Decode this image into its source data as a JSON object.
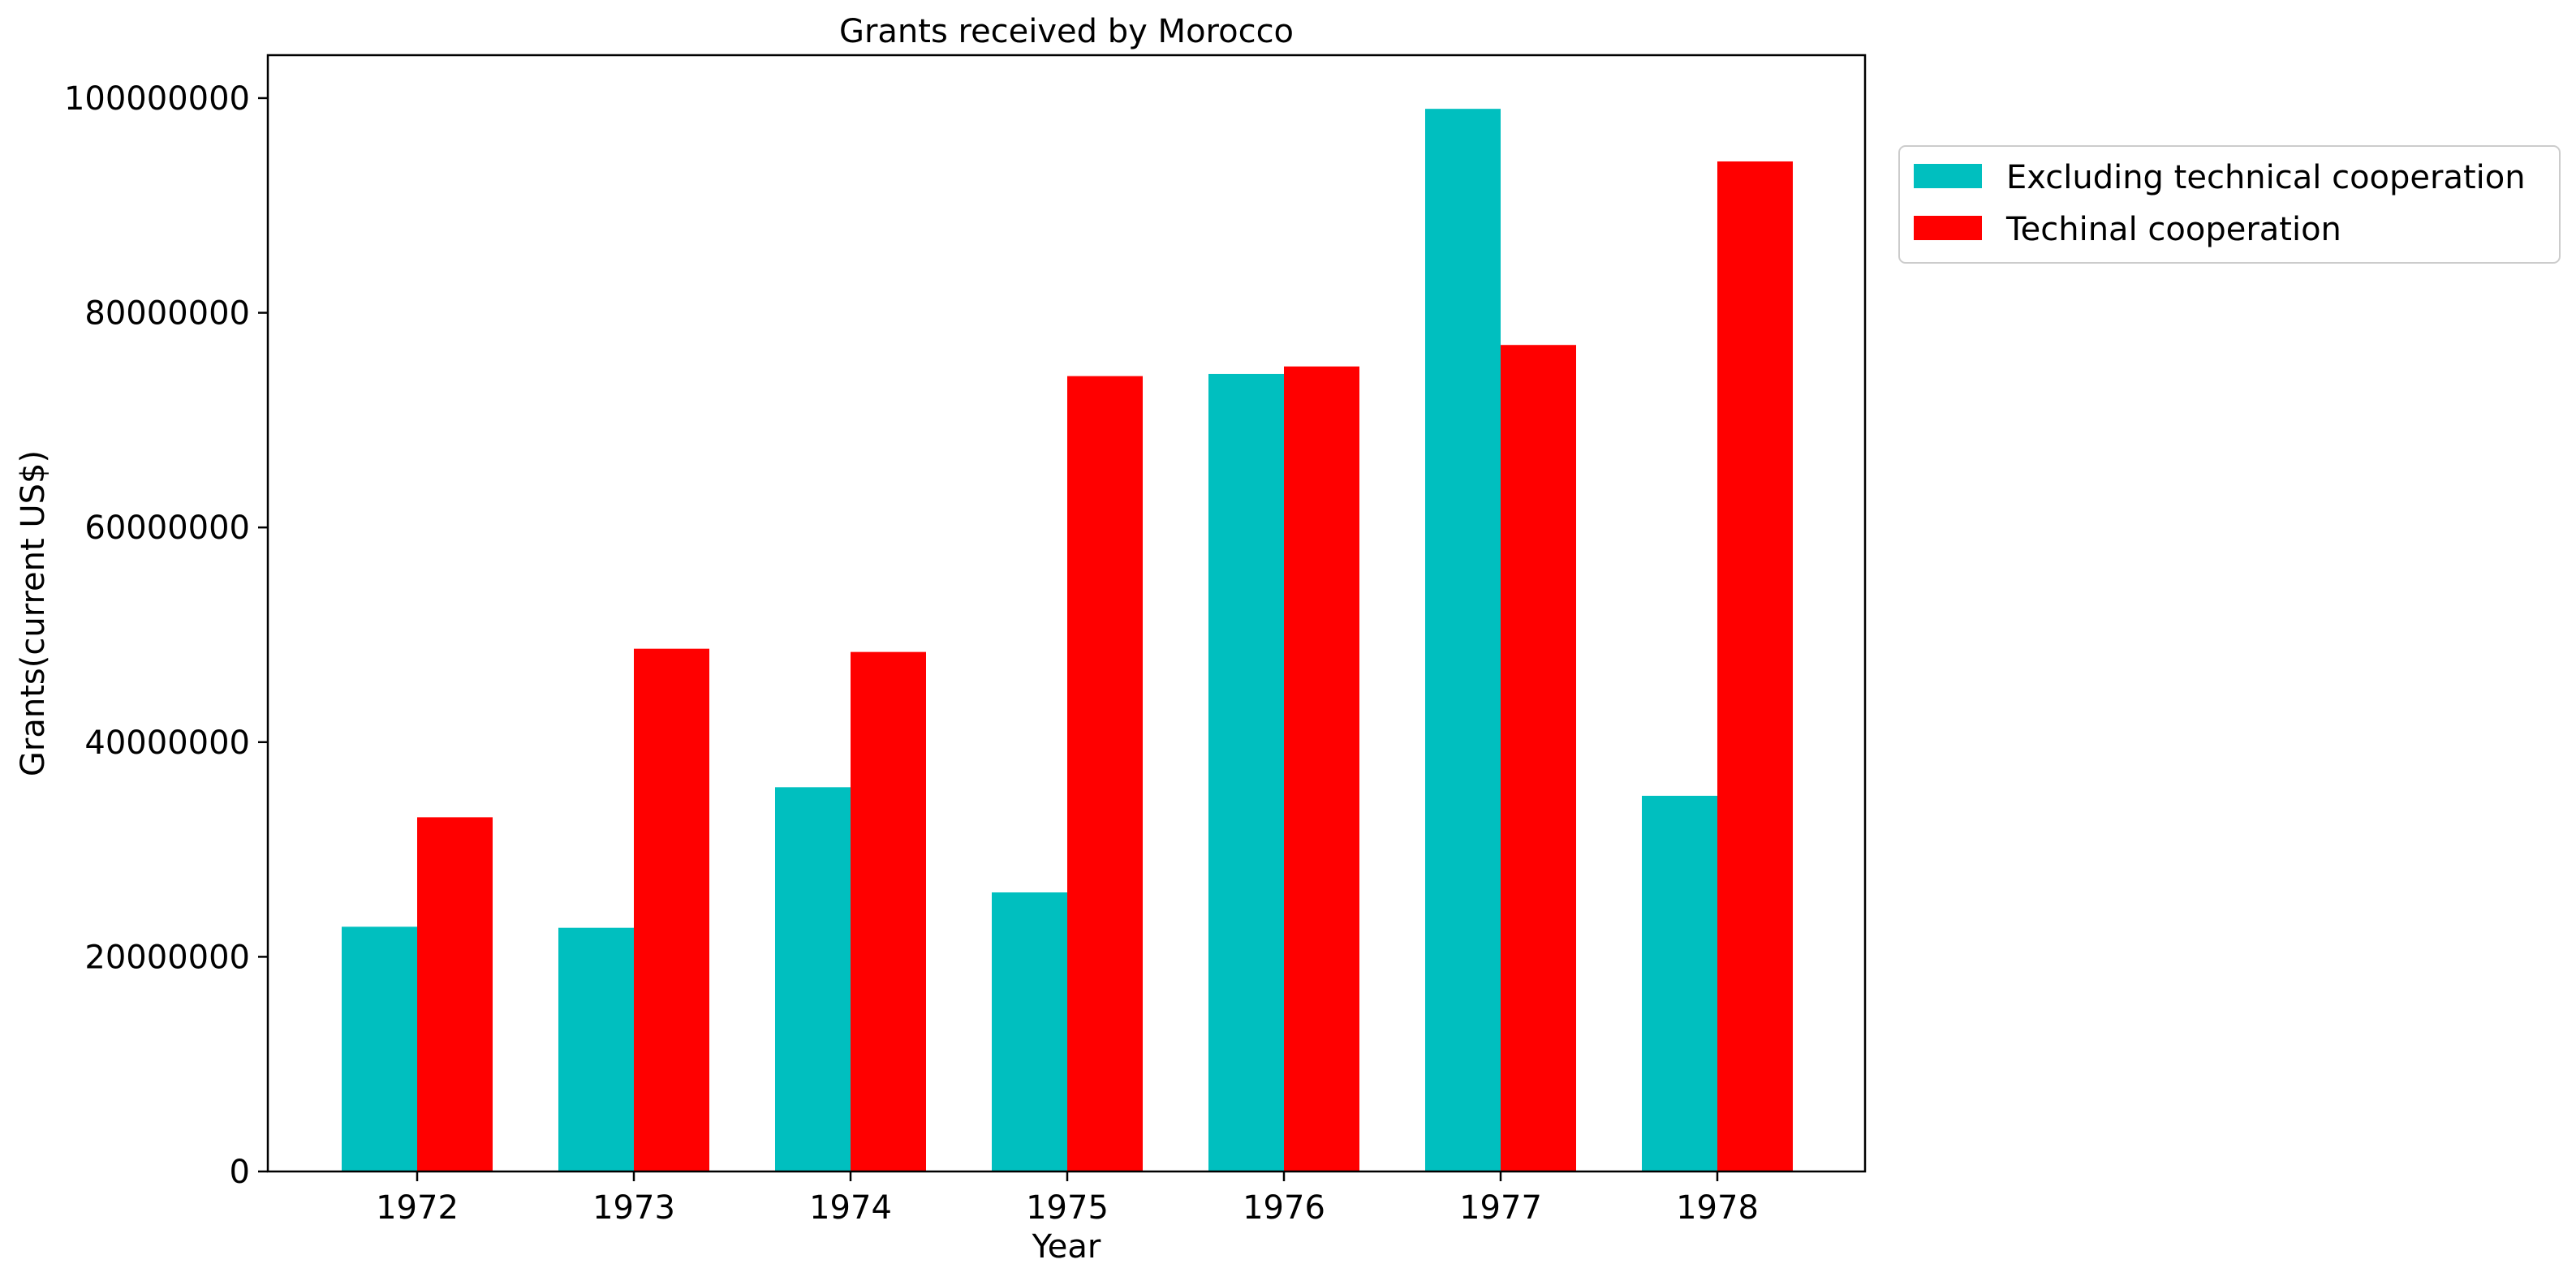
{
  "chart_data": {
    "type": "bar",
    "title": "Grants received by Morocco",
    "xlabel": "Year",
    "ylabel": "Grants(current US$)",
    "categories": [
      "1972",
      "1973",
      "1974",
      "1975",
      "1976",
      "1977",
      "1978"
    ],
    "series": [
      {
        "name": "Excluding technical cooperation",
        "color": "#00bfbf",
        "values": [
          22800000,
          22700000,
          35800000,
          26000000,
          74300000,
          99000000,
          35000000
        ]
      },
      {
        "name": "Techinal cooperation",
        "color": "#ff0000",
        "values": [
          33000000,
          48700000,
          48400000,
          74100000,
          75000000,
          77000000,
          94100000
        ]
      }
    ],
    "ylim": [
      0,
      104000000
    ],
    "yticks": [
      0,
      20000000,
      40000000,
      60000000,
      80000000,
      100000000
    ],
    "ytick_labels": [
      "0",
      "20000000",
      "40000000",
      "60000000",
      "80000000",
      "100000000"
    ],
    "grid": false,
    "legend_position": "outside-top-right"
  }
}
